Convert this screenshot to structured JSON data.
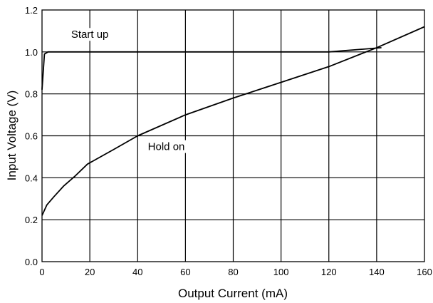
{
  "chart_data": {
    "type": "line",
    "title": "",
    "xlabel": "Output Current (mA)",
    "ylabel": "Input Voltage (V)",
    "xlim": [
      0,
      160
    ],
    "ylim": [
      0.0,
      1.2
    ],
    "grid": true,
    "x_ticks": [
      "0",
      "20",
      "40",
      "60",
      "80",
      "100",
      "120",
      "140",
      "160"
    ],
    "y_ticks": [
      "0.0",
      "0.2",
      "0.4",
      "0.6",
      "0.8",
      "1.0",
      "1.2"
    ],
    "series": [
      {
        "x": [
          0,
          1,
          2.5,
          10,
          40,
          60,
          80,
          100,
          120,
          142
        ],
        "y": [
          0.82,
          0.99,
          1.0,
          1.0,
          1.0,
          1.0,
          1.0,
          1.0,
          1.0,
          1.02
        ]
      },
      {
        "x": [
          0,
          2,
          5,
          9,
          14,
          19,
          30,
          40,
          60,
          80,
          100,
          120,
          140,
          160
        ],
        "y": [
          0.22,
          0.27,
          0.31,
          0.36,
          0.41,
          0.465,
          0.535,
          0.6,
          0.7,
          0.78,
          0.855,
          0.93,
          1.02,
          1.12
        ]
      }
    ],
    "annotations": [
      {
        "text": "Start up",
        "x": 20,
        "y": 1.07
      },
      {
        "text": "Hold on",
        "x": 52,
        "y": 0.535
      }
    ]
  }
}
